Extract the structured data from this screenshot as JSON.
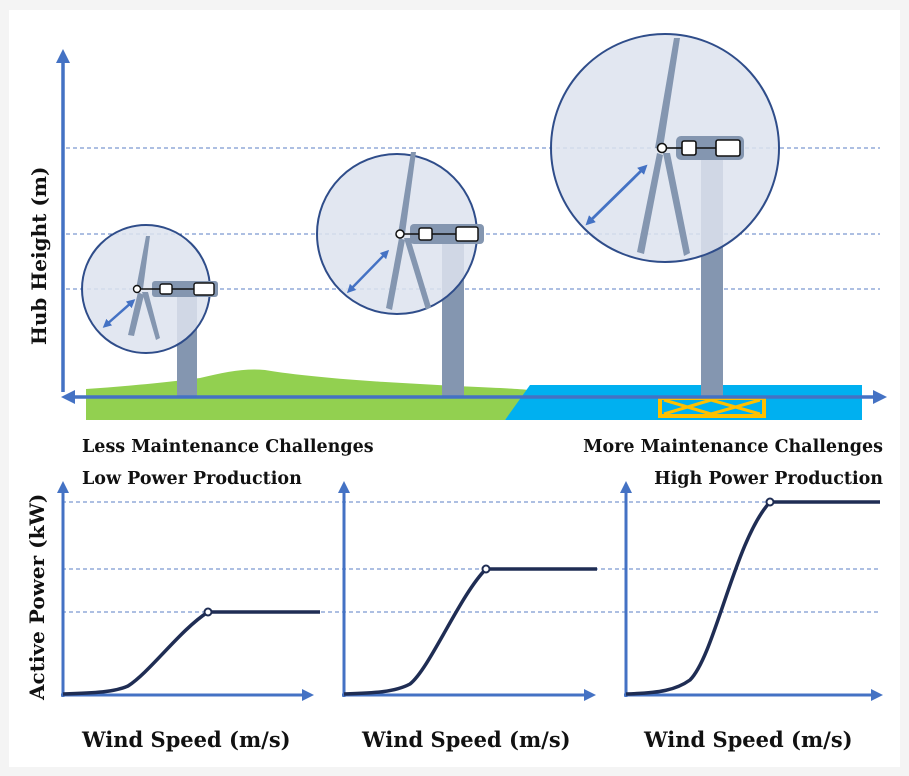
{
  "top": {
    "y_axis_label": "Hub Height (m)",
    "caption_left_1": "Less Maintenance Challenges",
    "caption_left_2": "Low Power Production",
    "caption_right_1": "More Maintenance Challenges",
    "caption_right_2": "High Power Production",
    "turbines": [
      {
        "name": "small",
        "terrain": "onshore"
      },
      {
        "name": "medium",
        "terrain": "onshore"
      },
      {
        "name": "large",
        "terrain": "offshore"
      }
    ]
  },
  "bottom": {
    "y_axis_label": "Active Power (kW)",
    "x_axis_label": "Wind Speed (m/s)"
  },
  "chart_data": [
    {
      "type": "line",
      "name": "small-turbine-power-curve",
      "xlabel": "Wind Speed (m/s)",
      "ylabel": "Active Power (kW)",
      "rated_power_fraction": 0.42
    },
    {
      "type": "line",
      "name": "medium-turbine-power-curve",
      "xlabel": "Wind Speed (m/s)",
      "ylabel": "Active Power (kW)",
      "rated_power_fraction": 0.63
    },
    {
      "type": "line",
      "name": "large-turbine-power-curve",
      "xlabel": "Wind Speed (m/s)",
      "ylabel": "Active Power (kW)",
      "rated_power_fraction": 1.0
    }
  ],
  "colors": {
    "axis": "#4472c4",
    "dashed": "#5b7fc4",
    "curve": "#1f2d54",
    "grass": "#92d050",
    "sea": "#00b0f0",
    "tower": "#8496b0",
    "circle_fill": "#dde3ef",
    "circle_stroke": "#2f4d8a",
    "platform": "#ffc000"
  }
}
